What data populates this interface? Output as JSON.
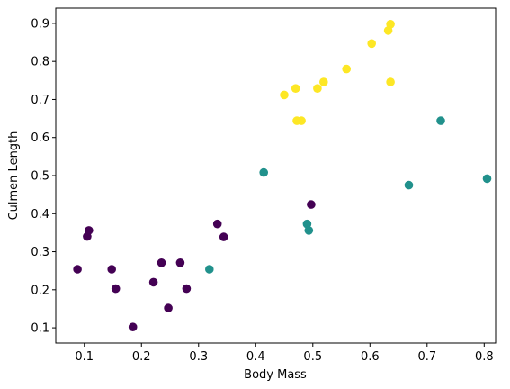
{
  "chart_data": {
    "type": "scatter",
    "title": "",
    "xlabel": "Body Mass",
    "ylabel": "Culmen Length",
    "xlim": [
      0.05,
      0.82
    ],
    "ylim": [
      0.06,
      0.94
    ],
    "xticks": [
      0.1,
      0.2,
      0.3,
      0.4,
      0.5,
      0.6,
      0.7,
      0.8
    ],
    "yticks": [
      0.1,
      0.2,
      0.3,
      0.4,
      0.5,
      0.6,
      0.7,
      0.8,
      0.9
    ],
    "grid": false,
    "series": [
      {
        "color": "#440154",
        "points": [
          [
            0.088,
            0.254
          ],
          [
            0.105,
            0.34
          ],
          [
            0.108,
            0.356
          ],
          [
            0.148,
            0.254
          ],
          [
            0.155,
            0.203
          ],
          [
            0.185,
            0.102
          ],
          [
            0.221,
            0.22
          ],
          [
            0.235,
            0.271
          ],
          [
            0.247,
            0.152
          ],
          [
            0.268,
            0.271
          ],
          [
            0.279,
            0.203
          ],
          [
            0.333,
            0.373
          ],
          [
            0.344,
            0.339
          ],
          [
            0.497,
            0.424
          ]
        ]
      },
      {
        "color": "#21918c",
        "points": [
          [
            0.319,
            0.254
          ],
          [
            0.414,
            0.508
          ],
          [
            0.49,
            0.373
          ],
          [
            0.493,
            0.356
          ],
          [
            0.668,
            0.475
          ],
          [
            0.724,
            0.644
          ],
          [
            0.805,
            0.492
          ]
        ]
      },
      {
        "color": "#fde725",
        "points": [
          [
            0.45,
            0.712
          ],
          [
            0.47,
            0.729
          ],
          [
            0.472,
            0.644
          ],
          [
            0.48,
            0.644
          ],
          [
            0.508,
            0.729
          ],
          [
            0.519,
            0.746
          ],
          [
            0.559,
            0.78
          ],
          [
            0.603,
            0.847
          ],
          [
            0.632,
            0.881
          ],
          [
            0.636,
            0.898
          ],
          [
            0.636,
            0.746
          ]
        ]
      }
    ]
  }
}
